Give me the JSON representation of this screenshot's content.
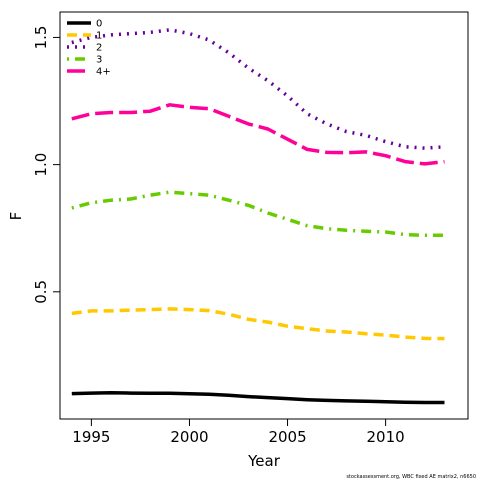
{
  "chart_data": {
    "type": "line",
    "xlabel": "Year",
    "ylabel": "F",
    "xlim": [
      1993.4,
      2014.2
    ],
    "ylim": [
      0.0,
      1.6
    ],
    "x_ticks": [
      1995,
      2000,
      2005,
      2010
    ],
    "x_tick_labels": [
      "1995",
      "2000",
      "2005",
      "2010"
    ],
    "y_ticks": [
      0.5,
      1.0,
      1.5
    ],
    "y_tick_labels": [
      "0.5",
      "1.0",
      "1.5"
    ],
    "legend_position": "top-left",
    "x": [
      1994,
      1995,
      1996,
      1997,
      1998,
      1999,
      2000,
      2001,
      2002,
      2003,
      2004,
      2005,
      2006,
      2007,
      2008,
      2009,
      2010,
      2011,
      2012,
      2013
    ],
    "series": [
      {
        "name": "0",
        "color": "#000000",
        "dash": "solid",
        "values": [
          0.1,
          0.102,
          0.103,
          0.102,
          0.101,
          0.101,
          0.099,
          0.097,
          0.093,
          0.088,
          0.084,
          0.08,
          0.076,
          0.073,
          0.071,
          0.07,
          0.068,
          0.066,
          0.065,
          0.065
        ]
      },
      {
        "name": "1",
        "color": "#FFC800",
        "dash": "dashed",
        "values": [
          0.415,
          0.425,
          0.425,
          0.428,
          0.43,
          0.433,
          0.43,
          0.426,
          0.412,
          0.392,
          0.381,
          0.365,
          0.355,
          0.346,
          0.342,
          0.335,
          0.33,
          0.322,
          0.317,
          0.316
        ]
      },
      {
        "name": "2",
        "color": "#660099",
        "dash": "dotted",
        "values": [
          1.48,
          1.5,
          1.51,
          1.515,
          1.52,
          1.53,
          1.515,
          1.49,
          1.44,
          1.38,
          1.33,
          1.27,
          1.2,
          1.16,
          1.13,
          1.115,
          1.09,
          1.07,
          1.065,
          1.07
        ]
      },
      {
        "name": "3",
        "color": "#66CC00",
        "dash": "dotdash",
        "values": [
          0.83,
          0.85,
          0.86,
          0.865,
          0.88,
          0.892,
          0.886,
          0.88,
          0.86,
          0.84,
          0.81,
          0.785,
          0.76,
          0.748,
          0.742,
          0.738,
          0.735,
          0.725,
          0.722,
          0.722
        ]
      },
      {
        "name": "4+",
        "color": "#FF0099",
        "dash": "longdash",
        "values": [
          1.18,
          1.2,
          1.205,
          1.205,
          1.21,
          1.235,
          1.225,
          1.22,
          1.19,
          1.16,
          1.14,
          1.1,
          1.06,
          1.048,
          1.047,
          1.05,
          1.035,
          1.012,
          1.003,
          1.012
        ]
      }
    ],
    "footnote": "stockassessment.org, WBC fixed AE matrix2, n6650"
  }
}
